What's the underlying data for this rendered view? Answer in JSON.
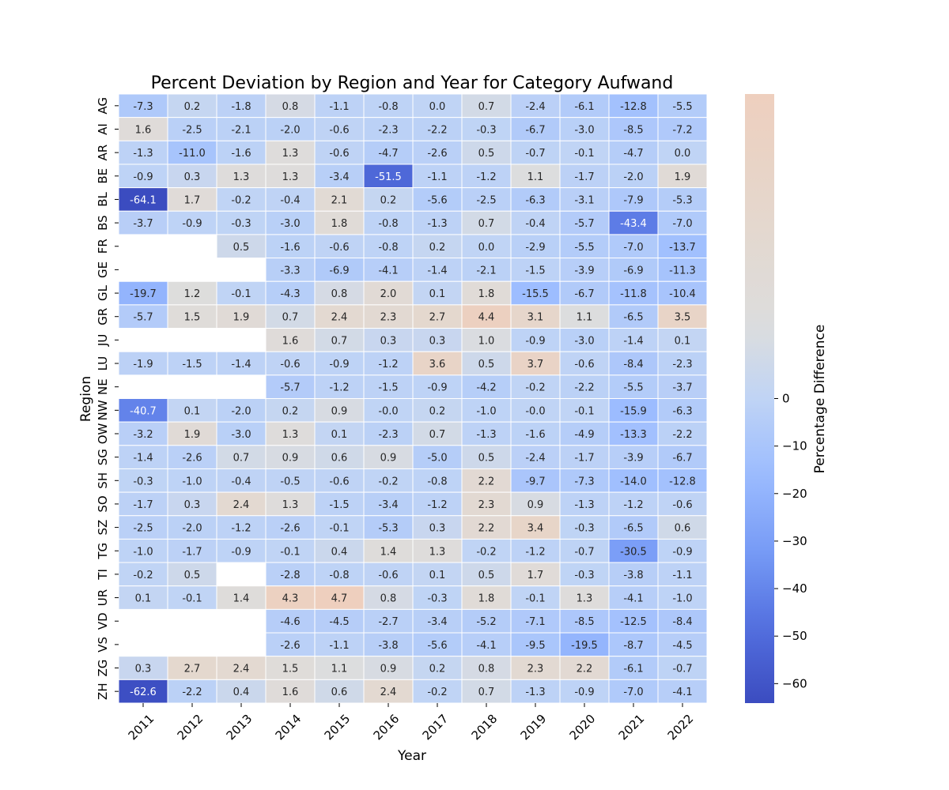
{
  "chart_data": {
    "type": "heatmap",
    "title": "Percent Deviation by Region and Year for Category Aufwand",
    "xlabel": "Year",
    "ylabel": "Region",
    "colorbar_label": "Percentage Difference",
    "colorbar_range": [
      -64.1,
      4.7
    ],
    "colorbar_ticks": [
      0,
      -10,
      -20,
      -30,
      -40,
      -50,
      -60
    ],
    "colorbar_tick_labels": [
      "0",
      "−10",
      "−20",
      "−30",
      "−40",
      "−50",
      "−60"
    ],
    "colormap": "coolwarm",
    "center": 0,
    "years": [
      "2011",
      "2012",
      "2013",
      "2014",
      "2015",
      "2016",
      "2017",
      "2018",
      "2019",
      "2020",
      "2021",
      "2022"
    ],
    "regions": [
      "AG",
      "AI",
      "AR",
      "BE",
      "BL",
      "BS",
      "FR",
      "GE",
      "GL",
      "GR",
      "JU",
      "LU",
      "NE",
      "NW",
      "OW",
      "SG",
      "SH",
      "SO",
      "SZ",
      "TG",
      "TI",
      "UR",
      "VD",
      "VS",
      "ZG",
      "ZH"
    ],
    "values": [
      [
        -7.3,
        0.2,
        -1.8,
        0.8,
        -1.1,
        -0.8,
        0.0,
        0.7,
        -2.4,
        -6.1,
        -12.8,
        -5.5
      ],
      [
        1.6,
        -2.5,
        -2.1,
        -2.0,
        -0.6,
        -2.3,
        -2.2,
        -0.3,
        -6.7,
        -3.0,
        -8.5,
        -7.2
      ],
      [
        -1.3,
        -11.0,
        -1.6,
        1.3,
        -0.6,
        -4.7,
        -2.6,
        0.5,
        -0.7,
        -0.1,
        -4.7,
        0.0
      ],
      [
        -0.9,
        0.3,
        1.3,
        1.3,
        -3.4,
        -51.5,
        -1.1,
        -1.2,
        1.1,
        -1.7,
        -2.0,
        1.9
      ],
      [
        -64.1,
        1.7,
        -0.2,
        -0.4,
        2.1,
        0.2,
        -5.6,
        -2.5,
        -6.3,
        -3.1,
        -7.9,
        -5.3
      ],
      [
        -3.7,
        -0.9,
        -0.3,
        -3.0,
        1.8,
        -0.8,
        -1.3,
        0.7,
        -0.4,
        -5.7,
        -43.4,
        -7.0
      ],
      [
        null,
        null,
        0.5,
        -1.6,
        -0.6,
        -0.8,
        0.2,
        0.0,
        -2.9,
        -5.5,
        -7.0,
        -13.7
      ],
      [
        null,
        null,
        null,
        -3.3,
        -6.9,
        -4.1,
        -1.4,
        -2.1,
        -1.5,
        -3.9,
        -6.9,
        -11.3
      ],
      [
        -19.7,
        1.2,
        -0.1,
        -4.3,
        0.8,
        2.0,
        0.1,
        1.8,
        -15.5,
        -6.7,
        -11.8,
        -10.4
      ],
      [
        -5.7,
        1.5,
        1.9,
        0.7,
        2.4,
        2.3,
        2.7,
        4.4,
        3.1,
        1.1,
        -6.5,
        3.5
      ],
      [
        null,
        null,
        null,
        1.6,
        0.7,
        0.3,
        0.3,
        1.0,
        -0.9,
        -3.0,
        -1.4,
        0.1
      ],
      [
        -1.9,
        -1.5,
        -1.4,
        -0.6,
        -0.9,
        -1.2,
        3.6,
        0.5,
        3.7,
        -0.6,
        -8.4,
        -2.3
      ],
      [
        null,
        null,
        null,
        -5.7,
        -1.2,
        -1.5,
        -0.9,
        -4.2,
        -0.2,
        -2.2,
        -5.5,
        -3.7
      ],
      [
        -40.7,
        0.1,
        -2.0,
        0.2,
        0.9,
        -0.0,
        0.2,
        -1.0,
        -0.0,
        -0.1,
        -15.9,
        -6.3
      ],
      [
        -3.2,
        1.9,
        -3.0,
        1.3,
        0.1,
        -2.3,
        0.7,
        -1.3,
        -1.6,
        -4.9,
        -13.3,
        -2.2
      ],
      [
        -1.4,
        -2.6,
        0.7,
        0.9,
        0.6,
        0.9,
        -5.0,
        0.5,
        -2.4,
        -1.7,
        -3.9,
        -6.7
      ],
      [
        -0.3,
        -1.0,
        -0.4,
        -0.5,
        -0.6,
        -0.2,
        -0.8,
        2.2,
        -9.7,
        -7.3,
        -14.0,
        -12.8
      ],
      [
        -1.7,
        0.3,
        2.4,
        1.3,
        -1.5,
        -3.4,
        -1.2,
        2.3,
        0.9,
        -1.3,
        -1.2,
        -0.6
      ],
      [
        -2.5,
        -2.0,
        -1.2,
        -2.6,
        -0.1,
        -5.3,
        0.3,
        2.2,
        3.4,
        -0.3,
        -6.5,
        0.6
      ],
      [
        -1.0,
        -1.7,
        -0.9,
        -0.1,
        0.4,
        1.4,
        1.3,
        -0.2,
        -1.2,
        -0.7,
        -30.5,
        -0.9
      ],
      [
        -0.2,
        0.5,
        null,
        -2.8,
        -0.8,
        -0.6,
        0.1,
        0.5,
        1.7,
        -0.3,
        -3.8,
        -1.1
      ],
      [
        0.1,
        -0.1,
        1.4,
        4.3,
        4.7,
        0.8,
        -0.3,
        1.8,
        -0.1,
        1.3,
        -4.1,
        -1.0
      ],
      [
        null,
        null,
        null,
        -4.6,
        -4.5,
        -2.7,
        -3.4,
        -5.2,
        -7.1,
        -8.5,
        -12.5,
        -8.4
      ],
      [
        null,
        null,
        null,
        -2.6,
        -1.1,
        -3.8,
        -5.6,
        -4.1,
        -9.5,
        -19.5,
        -8.7,
        -4.5
      ],
      [
        0.3,
        2.7,
        2.4,
        1.5,
        1.1,
        0.9,
        0.2,
        0.8,
        2.3,
        2.2,
        -6.1,
        -0.7
      ],
      [
        -62.6,
        -2.2,
        0.4,
        1.6,
        0.6,
        2.4,
        -0.2,
        0.7,
        -1.3,
        -0.9,
        -7.0,
        -4.1
      ]
    ],
    "value_labels": [
      [
        "-7.3",
        "0.2",
        "-1.8",
        "0.8",
        "-1.1",
        "-0.8",
        "0.0",
        "0.7",
        "-2.4",
        "-6.1",
        "-12.8",
        "-5.5"
      ],
      [
        "1.6",
        "-2.5",
        "-2.1",
        "-2.0",
        "-0.6",
        "-2.3",
        "-2.2",
        "-0.3",
        "-6.7",
        "-3.0",
        "-8.5",
        "-7.2"
      ],
      [
        "-1.3",
        "-11.0",
        "-1.6",
        "1.3",
        "-0.6",
        "-4.7",
        "-2.6",
        "0.5",
        "-0.7",
        "-0.1",
        "-4.7",
        "0.0"
      ],
      [
        "-0.9",
        "0.3",
        "1.3",
        "1.3",
        "-3.4",
        "-51.5",
        "-1.1",
        "-1.2",
        "1.1",
        "-1.7",
        "-2.0",
        "1.9"
      ],
      [
        "-64.1",
        "1.7",
        "-0.2",
        "-0.4",
        "2.1",
        "0.2",
        "-5.6",
        "-2.5",
        "-6.3",
        "-3.1",
        "-7.9",
        "-5.3"
      ],
      [
        "-3.7",
        "-0.9",
        "-0.3",
        "-3.0",
        "1.8",
        "-0.8",
        "-1.3",
        "0.7",
        "-0.4",
        "-5.7",
        "-43.4",
        "-7.0"
      ],
      [
        null,
        null,
        "0.5",
        "-1.6",
        "-0.6",
        "-0.8",
        "0.2",
        "0.0",
        "-2.9",
        "-5.5",
        "-7.0",
        "-13.7"
      ],
      [
        null,
        null,
        null,
        "-3.3",
        "-6.9",
        "-4.1",
        "-1.4",
        "-2.1",
        "-1.5",
        "-3.9",
        "-6.9",
        "-11.3"
      ],
      [
        "-19.7",
        "1.2",
        "-0.1",
        "-4.3",
        "0.8",
        "2.0",
        "0.1",
        "1.8",
        "-15.5",
        "-6.7",
        "-11.8",
        "-10.4"
      ],
      [
        "-5.7",
        "1.5",
        "1.9",
        "0.7",
        "2.4",
        "2.3",
        "2.7",
        "4.4",
        "3.1",
        "1.1",
        "-6.5",
        "3.5"
      ],
      [
        null,
        null,
        null,
        "1.6",
        "0.7",
        "0.3",
        "0.3",
        "1.0",
        "-0.9",
        "-3.0",
        "-1.4",
        "0.1"
      ],
      [
        "-1.9",
        "-1.5",
        "-1.4",
        "-0.6",
        "-0.9",
        "-1.2",
        "3.6",
        "0.5",
        "3.7",
        "-0.6",
        "-8.4",
        "-2.3"
      ],
      [
        null,
        null,
        null,
        "-5.7",
        "-1.2",
        "-1.5",
        "-0.9",
        "-4.2",
        "-0.2",
        "-2.2",
        "-5.5",
        "-3.7"
      ],
      [
        "-40.7",
        "0.1",
        "-2.0",
        "0.2",
        "0.9",
        "-0.0",
        "0.2",
        "-1.0",
        "-0.0",
        "-0.1",
        "-15.9",
        "-6.3"
      ],
      [
        "-3.2",
        "1.9",
        "-3.0",
        "1.3",
        "0.1",
        "-2.3",
        "0.7",
        "-1.3",
        "-1.6",
        "-4.9",
        "-13.3",
        "-2.2"
      ],
      [
        "-1.4",
        "-2.6",
        "0.7",
        "0.9",
        "0.6",
        "0.9",
        "-5.0",
        "0.5",
        "-2.4",
        "-1.7",
        "-3.9",
        "-6.7"
      ],
      [
        "-0.3",
        "-1.0",
        "-0.4",
        "-0.5",
        "-0.6",
        "-0.2",
        "-0.8",
        "2.2",
        "-9.7",
        "-7.3",
        "-14.0",
        "-12.8"
      ],
      [
        "-1.7",
        "0.3",
        "2.4",
        "1.3",
        "-1.5",
        "-3.4",
        "-1.2",
        "2.3",
        "0.9",
        "-1.3",
        "-1.2",
        "-0.6"
      ],
      [
        "-2.5",
        "-2.0",
        "-1.2",
        "-2.6",
        "-0.1",
        "-5.3",
        "0.3",
        "2.2",
        "3.4",
        "-0.3",
        "-6.5",
        "0.6"
      ],
      [
        "-1.0",
        "-1.7",
        "-0.9",
        "-0.1",
        "0.4",
        "1.4",
        "1.3",
        "-0.2",
        "-1.2",
        "-0.7",
        "-30.5",
        "-0.9"
      ],
      [
        "-0.2",
        "0.5",
        null,
        "-2.8",
        "-0.8",
        "-0.6",
        "0.1",
        "0.5",
        "1.7",
        "-0.3",
        "-3.8",
        "-1.1"
      ],
      [
        "0.1",
        "-0.1",
        "1.4",
        "4.3",
        "4.7",
        "0.8",
        "-0.3",
        "1.8",
        "-0.1",
        "1.3",
        "-4.1",
        "-1.0"
      ],
      [
        null,
        null,
        null,
        "-4.6",
        "-4.5",
        "-2.7",
        "-3.4",
        "-5.2",
        "-7.1",
        "-8.5",
        "-12.5",
        "-8.4"
      ],
      [
        null,
        null,
        null,
        "-2.6",
        "-1.1",
        "-3.8",
        "-5.6",
        "-4.1",
        "-9.5",
        "-19.5",
        "-8.7",
        "-4.5"
      ],
      [
        "0.3",
        "2.7",
        "2.4",
        "1.5",
        "1.1",
        "0.9",
        "0.2",
        "0.8",
        "2.3",
        "2.2",
        "-6.1",
        "-0.7"
      ],
      [
        "-62.6",
        "-2.2",
        "0.4",
        "1.6",
        "0.6",
        "2.4",
        "-0.2",
        "0.7",
        "-1.3",
        "-0.9",
        "-7.0",
        "-4.1"
      ]
    ]
  }
}
